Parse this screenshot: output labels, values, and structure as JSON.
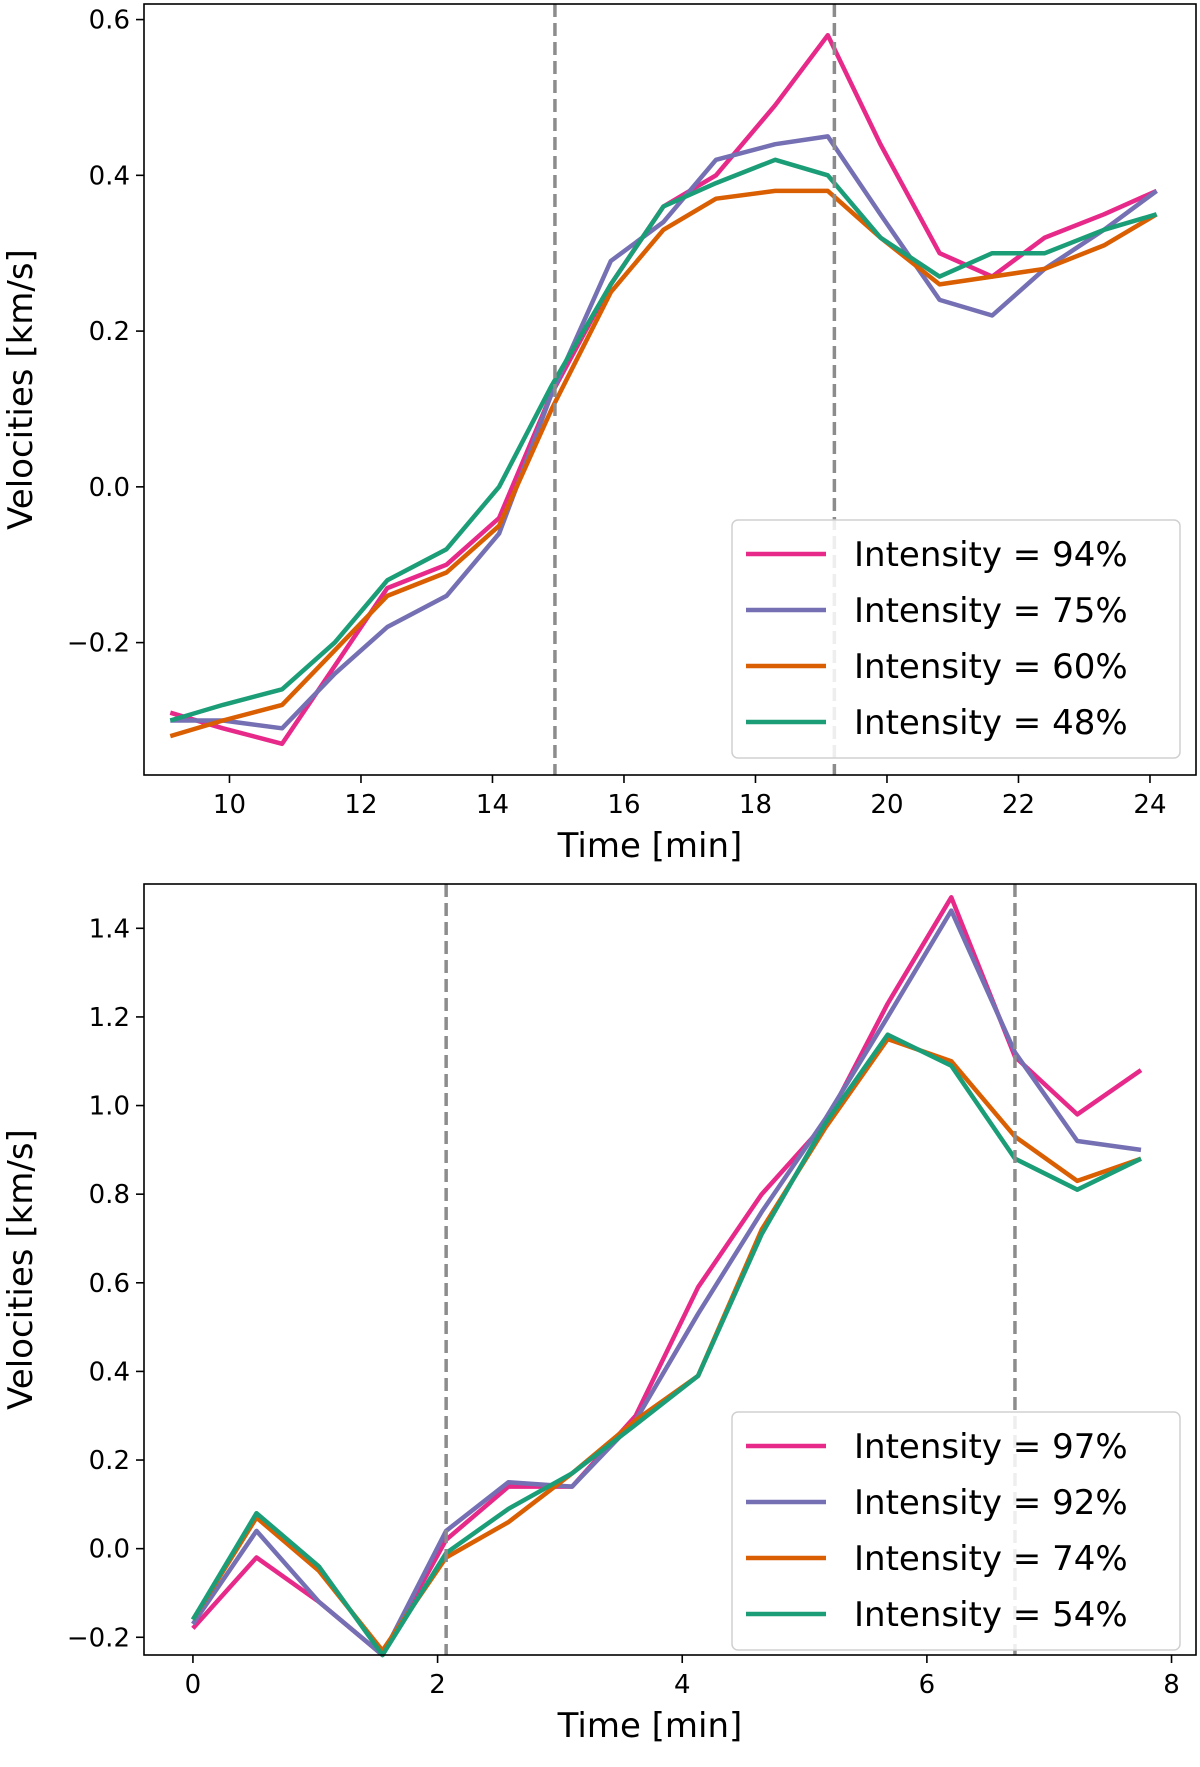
{
  "chart_data": [
    {
      "type": "line",
      "title": "",
      "xlabel": "Time [min]",
      "ylabel": "Velocities [km/s]",
      "xlim": [
        8.7,
        24.7
      ],
      "ylim": [
        -0.37,
        0.62
      ],
      "xticks": [
        10,
        12,
        14,
        16,
        18,
        20,
        22,
        24
      ],
      "xtick_labels": [
        "10",
        "12",
        "14",
        "16",
        "18",
        "20",
        "22",
        "24"
      ],
      "yticks": [
        -0.2,
        0.0,
        0.2,
        0.4,
        0.6
      ],
      "ytick_labels": [
        "−0.2",
        "0.0",
        "0.2",
        "0.4",
        "0.6"
      ],
      "vlines": [
        14.95,
        19.2
      ],
      "legend_position": "lower-right",
      "x": [
        9.1,
        9.9,
        10.8,
        11.6,
        12.4,
        13.3,
        14.1,
        14.9,
        15.8,
        16.6,
        17.4,
        18.3,
        19.1,
        19.9,
        20.8,
        21.6,
        22.4,
        23.3,
        24.1
      ],
      "series": [
        {
          "name": "Intensity = 94%",
          "color": "#e7298a",
          "values": [
            -0.29,
            -0.31,
            -0.33,
            -0.23,
            -0.13,
            -0.1,
            -0.04,
            0.12,
            0.26,
            0.36,
            0.4,
            0.49,
            0.58,
            0.44,
            0.3,
            0.27,
            0.32,
            0.35,
            0.38
          ]
        },
        {
          "name": "Intensity = 75%",
          "color": "#7570b3",
          "values": [
            -0.3,
            -0.3,
            -0.31,
            -0.24,
            -0.18,
            -0.14,
            -0.06,
            0.12,
            0.29,
            0.34,
            0.42,
            0.44,
            0.45,
            0.35,
            0.24,
            0.22,
            0.28,
            0.33,
            0.38
          ]
        },
        {
          "name": "Intensity = 60%",
          "color": "#d95f02",
          "values": [
            -0.32,
            -0.3,
            -0.28,
            -0.21,
            -0.14,
            -0.11,
            -0.05,
            0.1,
            0.25,
            0.33,
            0.37,
            0.38,
            0.38,
            0.32,
            0.26,
            0.27,
            0.28,
            0.31,
            0.35
          ]
        },
        {
          "name": "Intensity = 48%",
          "color": "#1b9e77",
          "values": [
            -0.3,
            -0.28,
            -0.26,
            -0.2,
            -0.12,
            -0.08,
            0.0,
            0.13,
            0.26,
            0.36,
            0.39,
            0.42,
            0.4,
            0.32,
            0.27,
            0.3,
            0.3,
            0.33,
            0.35
          ]
        }
      ]
    },
    {
      "type": "line",
      "title": "",
      "xlabel": "Time [min]",
      "ylabel": "Velocities [km/s]",
      "xlim": [
        -0.4,
        8.2
      ],
      "ylim": [
        -0.24,
        1.5
      ],
      "xticks": [
        0,
        2,
        4,
        6,
        8
      ],
      "xtick_labels": [
        "0",
        "2",
        "4",
        "6",
        "8"
      ],
      "yticks": [
        -0.2,
        0.0,
        0.2,
        0.4,
        0.6,
        0.8,
        1.0,
        1.2,
        1.4
      ],
      "ytick_labels": [
        "−0.2",
        "0.0",
        "0.2",
        "0.4",
        "0.6",
        "0.8",
        "1.0",
        "1.2",
        "1.4"
      ],
      "vlines": [
        2.07,
        6.72
      ],
      "legend_position": "lower-right",
      "x": [
        0.0,
        0.52,
        1.03,
        1.55,
        2.07,
        2.58,
        3.1,
        3.62,
        4.13,
        4.65,
        5.17,
        5.68,
        6.2,
        6.72,
        7.23,
        7.75
      ],
      "series": [
        {
          "name": "Intensity = 97%",
          "color": "#e7298a",
          "values": [
            -0.18,
            -0.02,
            -0.12,
            -0.24,
            0.02,
            0.14,
            0.14,
            0.3,
            0.59,
            0.8,
            0.96,
            1.23,
            1.47,
            1.11,
            0.98,
            1.08
          ]
        },
        {
          "name": "Intensity = 92%",
          "color": "#7570b3",
          "values": [
            -0.17,
            0.04,
            -0.12,
            -0.24,
            0.04,
            0.15,
            0.14,
            0.29,
            0.53,
            0.76,
            0.97,
            1.2,
            1.44,
            1.12,
            0.92,
            0.9
          ]
        },
        {
          "name": "Intensity = 74%",
          "color": "#d95f02",
          "values": [
            -0.16,
            0.07,
            -0.05,
            -0.23,
            -0.02,
            0.06,
            0.17,
            0.29,
            0.39,
            0.72,
            0.95,
            1.15,
            1.1,
            0.93,
            0.83,
            0.88
          ]
        },
        {
          "name": "Intensity = 54%",
          "color": "#1b9e77",
          "values": [
            -0.16,
            0.08,
            -0.04,
            -0.24,
            -0.01,
            0.09,
            0.17,
            0.28,
            0.39,
            0.71,
            0.96,
            1.16,
            1.09,
            0.88,
            0.81,
            0.88
          ]
        }
      ]
    }
  ]
}
